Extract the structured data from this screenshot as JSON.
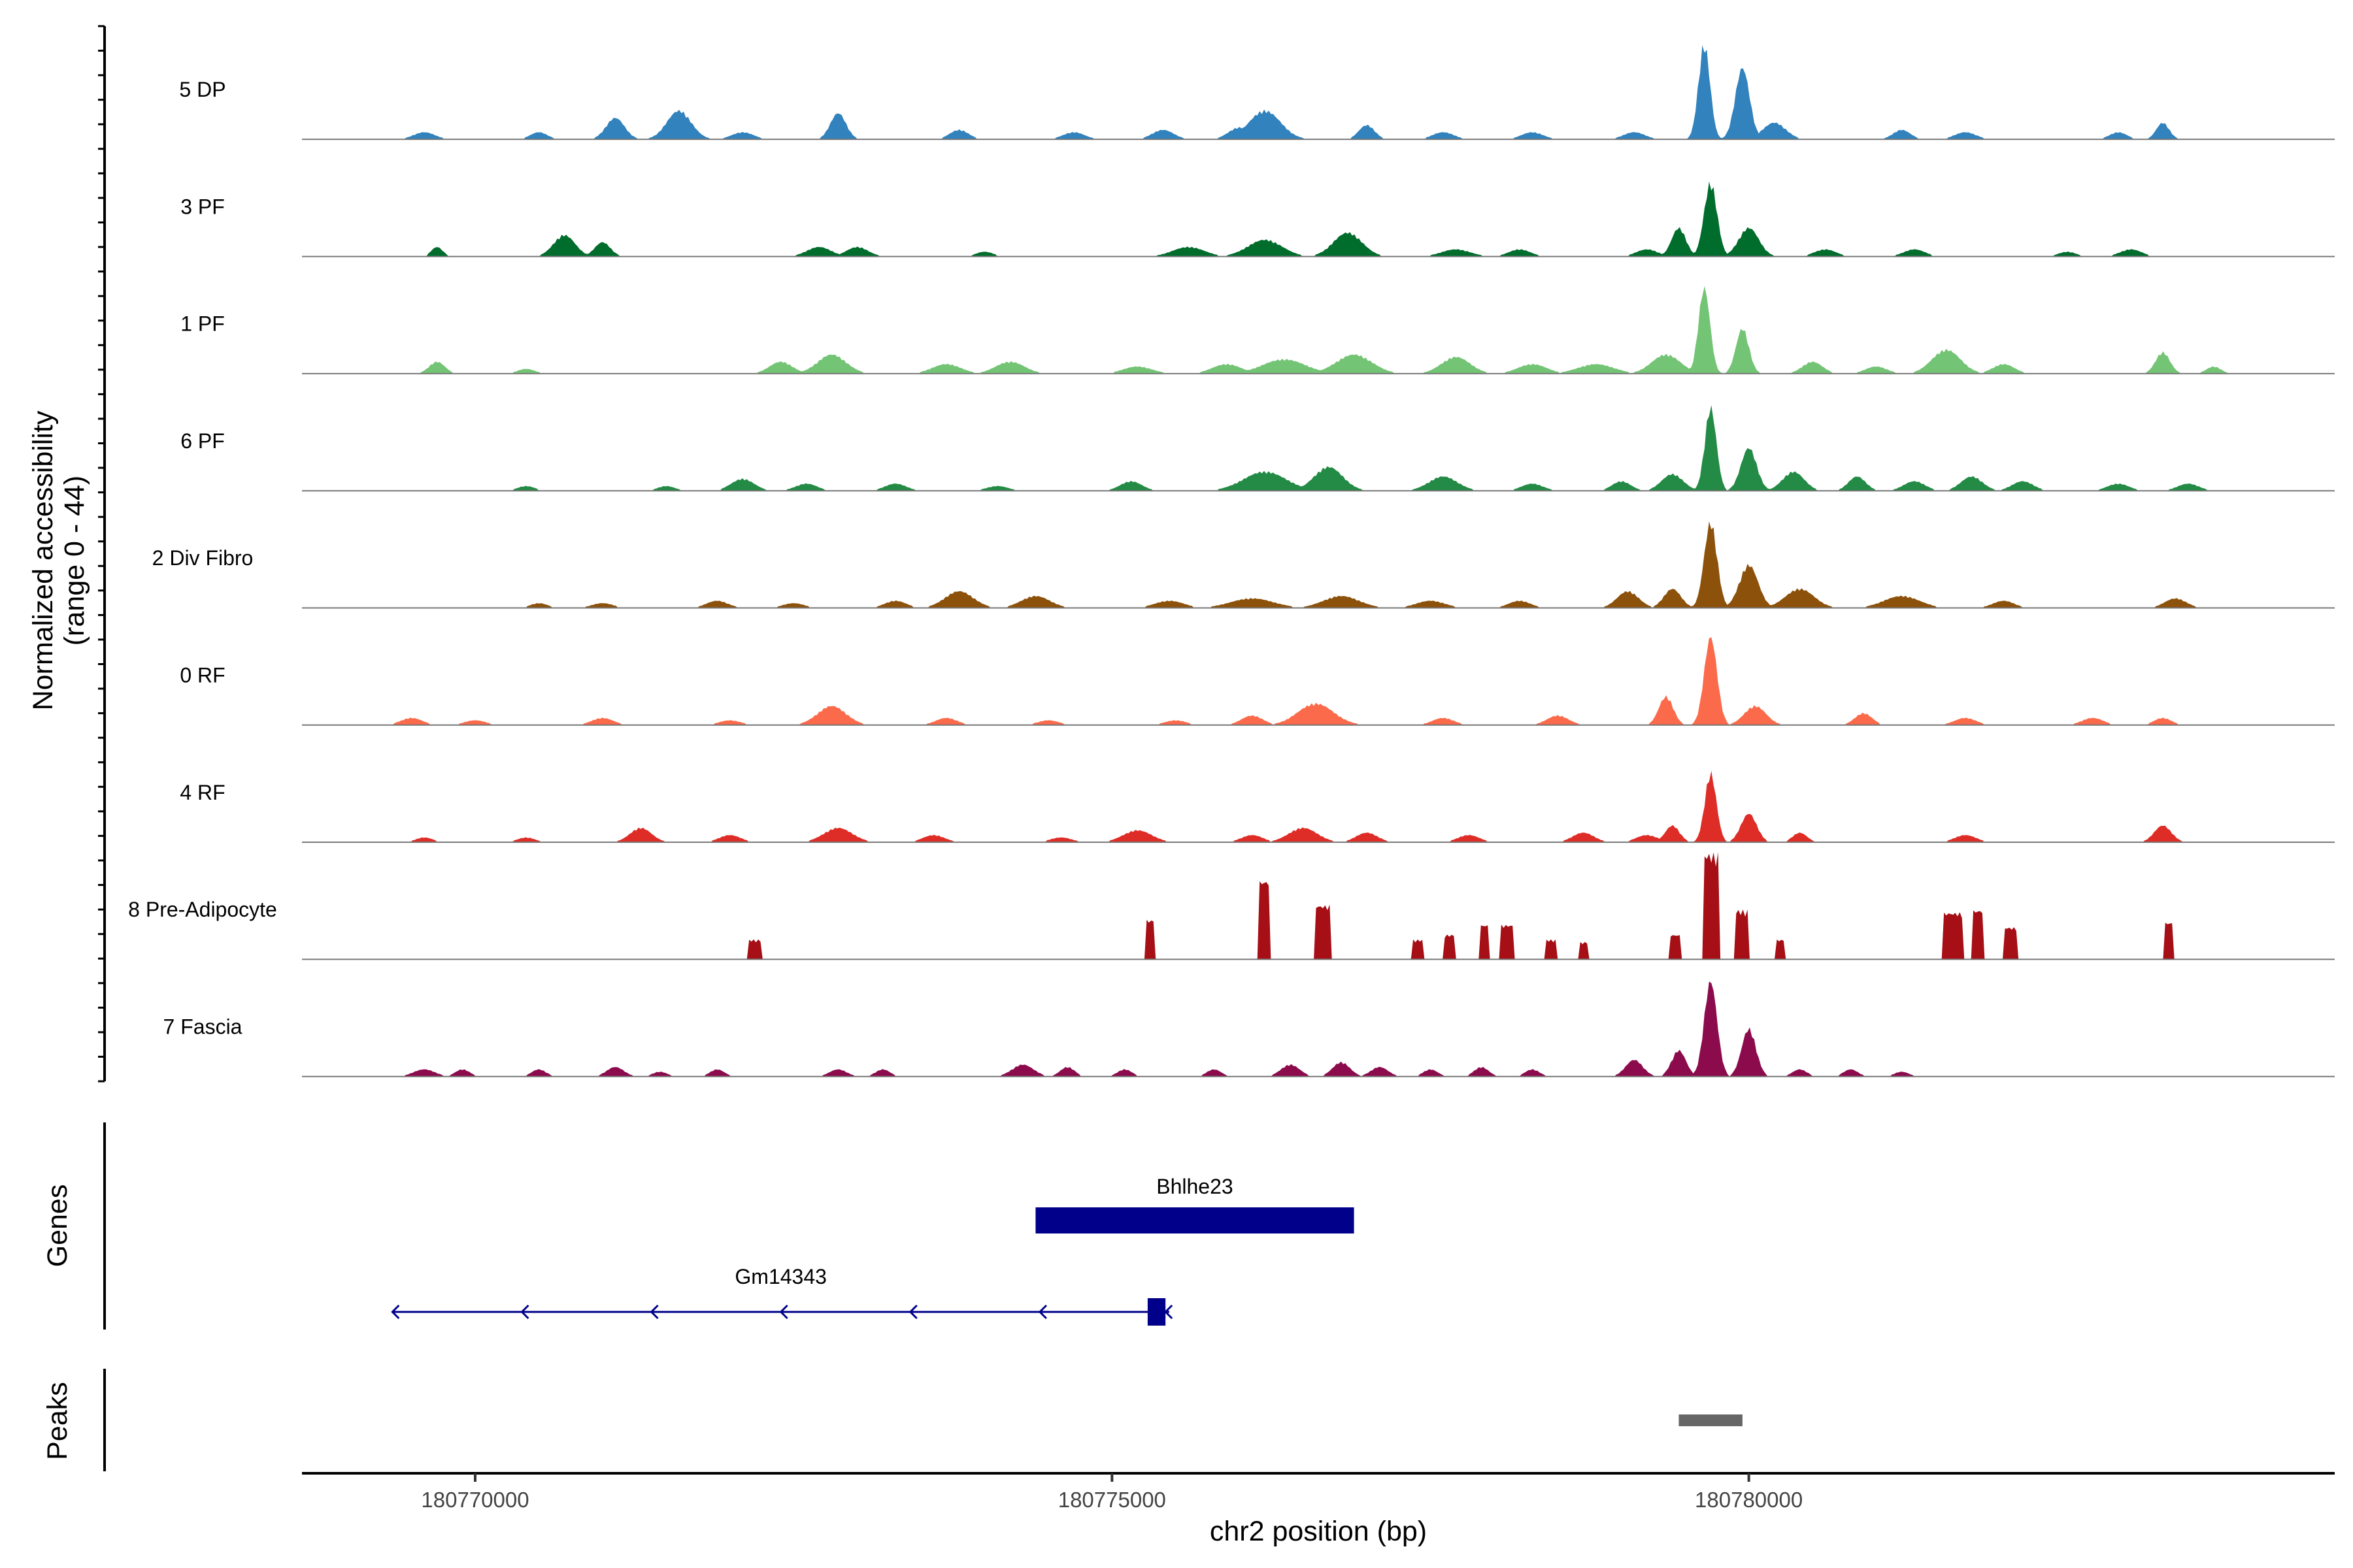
{
  "chart_data": {
    "type": "area",
    "title": "",
    "ylabel": "Normalized accessibility\n(range 0 - 44)",
    "xlabel": "chr2 position (bp)",
    "xlim": [
      180768640,
      180784600
    ],
    "ylim": [
      0,
      44
    ],
    "x_ticks": [
      180770000,
      180775000,
      180780000
    ],
    "x_tick_labels": [
      "180770000",
      "180775000",
      "180780000"
    ],
    "series": [
      {
        "name": "5 DP",
        "color": "#3182bd",
        "peaks": [
          [
            180769600,
            3,
            150
          ],
          [
            180770500,
            3,
            120
          ],
          [
            180771100,
            9,
            130
          ],
          [
            180771600,
            12,
            170
          ],
          [
            180772100,
            3,
            150
          ],
          [
            180772850,
            11,
            110
          ],
          [
            180773800,
            4,
            130
          ],
          [
            180774700,
            3,
            150
          ],
          [
            180775400,
            4,
            150
          ],
          [
            180776000,
            5,
            150
          ],
          [
            180776200,
            12,
            220
          ],
          [
            180777000,
            6,
            110
          ],
          [
            180777600,
            3,
            150
          ],
          [
            180778300,
            3,
            150
          ],
          [
            180779100,
            3,
            150
          ],
          [
            180779650,
            40,
            80
          ],
          [
            180779950,
            30,
            100
          ],
          [
            180780200,
            7,
            160
          ],
          [
            180781200,
            4,
            120
          ],
          [
            180781700,
            3,
            150
          ],
          [
            180782900,
            3,
            120
          ],
          [
            180783250,
            7,
            90
          ]
        ]
      },
      {
        "name": "3 PF",
        "color": "#006d2c",
        "peaks": [
          [
            180769700,
            4,
            80
          ],
          [
            180770700,
            9,
            150
          ],
          [
            180771000,
            6,
            110
          ],
          [
            180772700,
            4,
            170
          ],
          [
            180773000,
            4,
            150
          ],
          [
            180774000,
            2,
            120
          ],
          [
            180775600,
            4,
            220
          ],
          [
            180776200,
            7,
            240
          ],
          [
            180776850,
            10,
            200
          ],
          [
            180777700,
            3,
            200
          ],
          [
            180778200,
            3,
            150
          ],
          [
            180779200,
            3,
            150
          ],
          [
            180779450,
            12,
            100
          ],
          [
            180779700,
            31,
            90
          ],
          [
            180780000,
            12,
            140
          ],
          [
            180780600,
            3,
            150
          ],
          [
            180781300,
            3,
            150
          ],
          [
            180782500,
            2,
            120
          ],
          [
            180783000,
            3,
            150
          ]
        ]
      },
      {
        "name": "1 PF",
        "color": "#74c476",
        "peaks": [
          [
            180769700,
            5,
            110
          ],
          [
            180770400,
            2,
            120
          ],
          [
            180772400,
            5,
            160
          ],
          [
            180772800,
            8,
            200
          ],
          [
            180773700,
            4,
            200
          ],
          [
            180774200,
            5,
            200
          ],
          [
            180775200,
            3,
            200
          ],
          [
            180775900,
            4,
            200
          ],
          [
            180776350,
            6,
            300
          ],
          [
            180776900,
            8,
            250
          ],
          [
            180777700,
            7,
            200
          ],
          [
            180778300,
            4,
            200
          ],
          [
            180778800,
            4,
            250
          ],
          [
            180779350,
            8,
            200
          ],
          [
            180779650,
            36,
            80
          ],
          [
            180779950,
            19,
            90
          ],
          [
            180780500,
            5,
            140
          ],
          [
            180781000,
            3,
            150
          ],
          [
            180781550,
            10,
            200
          ],
          [
            180782000,
            4,
            150
          ],
          [
            180783250,
            9,
            100
          ],
          [
            180783650,
            3,
            100
          ]
        ]
      },
      {
        "name": "6 PF",
        "color": "#238b45",
        "peaks": [
          [
            180770400,
            2,
            120
          ],
          [
            180771500,
            2,
            120
          ],
          [
            180772100,
            5,
            160
          ],
          [
            180772600,
            3,
            150
          ],
          [
            180773300,
            3,
            150
          ],
          [
            180774100,
            2,
            150
          ],
          [
            180775150,
            4,
            150
          ],
          [
            180776200,
            8,
            300
          ],
          [
            180776700,
            10,
            200
          ],
          [
            180777600,
            6,
            200
          ],
          [
            180778300,
            3,
            150
          ],
          [
            180779000,
            4,
            130
          ],
          [
            180779400,
            7,
            150
          ],
          [
            180779700,
            35,
            80
          ],
          [
            180780000,
            18,
            110
          ],
          [
            180780350,
            8,
            150
          ],
          [
            180780850,
            6,
            120
          ],
          [
            180781300,
            4,
            150
          ],
          [
            180781750,
            6,
            150
          ],
          [
            180782150,
            4,
            150
          ],
          [
            180782900,
            3,
            150
          ],
          [
            180783450,
            3,
            150
          ]
        ]
      },
      {
        "name": "2 Div Fibro",
        "color": "#8c510a",
        "peaks": [
          [
            180770500,
            2,
            120
          ],
          [
            180771000,
            2,
            150
          ],
          [
            180771900,
            3,
            150
          ],
          [
            180772500,
            2,
            150
          ],
          [
            180773300,
            3,
            150
          ],
          [
            180773800,
            7,
            200
          ],
          [
            180774400,
            5,
            200
          ],
          [
            180775450,
            3,
            200
          ],
          [
            180776100,
            4,
            300
          ],
          [
            180776800,
            5,
            250
          ],
          [
            180777500,
            3,
            200
          ],
          [
            180778200,
            3,
            150
          ],
          [
            180779050,
            7,
            150
          ],
          [
            180779400,
            8,
            120
          ],
          [
            180779700,
            36,
            90
          ],
          [
            180780000,
            18,
            130
          ],
          [
            180780400,
            8,
            200
          ],
          [
            180781200,
            5,
            250
          ],
          [
            180782000,
            3,
            150
          ],
          [
            180783350,
            4,
            150
          ]
        ]
      },
      {
        "name": "0 RF",
        "color": "#fb6a4a",
        "peaks": [
          [
            180769500,
            3,
            150
          ],
          [
            180770000,
            2,
            150
          ],
          [
            180771000,
            3,
            150
          ],
          [
            180772000,
            2,
            150
          ],
          [
            180772800,
            8,
            200
          ],
          [
            180773700,
            3,
            150
          ],
          [
            180774500,
            2,
            150
          ],
          [
            180775500,
            2,
            150
          ],
          [
            180776100,
            4,
            150
          ],
          [
            180776600,
            9,
            250
          ],
          [
            180777600,
            3,
            150
          ],
          [
            180778500,
            4,
            150
          ],
          [
            180779350,
            12,
            100
          ],
          [
            180779700,
            37,
            90
          ],
          [
            180780050,
            8,
            150
          ],
          [
            180780900,
            5,
            120
          ],
          [
            180781700,
            3,
            150
          ],
          [
            180782700,
            3,
            150
          ],
          [
            180783250,
            3,
            120
          ]
        ]
      },
      {
        "name": "4 RF",
        "color": "#de2d26",
        "peaks": [
          [
            180769600,
            2,
            120
          ],
          [
            180770400,
            2,
            120
          ],
          [
            180771300,
            6,
            150
          ],
          [
            180772000,
            3,
            150
          ],
          [
            180772850,
            6,
            200
          ],
          [
            180773600,
            3,
            150
          ],
          [
            180774600,
            2,
            150
          ],
          [
            180775200,
            5,
            200
          ],
          [
            180776100,
            3,
            150
          ],
          [
            180776500,
            6,
            200
          ],
          [
            180777000,
            4,
            150
          ],
          [
            180777800,
            3,
            150
          ],
          [
            180778700,
            4,
            150
          ],
          [
            180779200,
            3,
            150
          ],
          [
            180779400,
            7,
            100
          ],
          [
            180779700,
            29,
            80
          ],
          [
            180780000,
            12,
            110
          ],
          [
            180780400,
            4,
            100
          ],
          [
            180781700,
            3,
            150
          ],
          [
            180783250,
            7,
            120
          ]
        ]
      },
      {
        "name": "8 Pre-Adipocyte",
        "color": "#a50f15",
        "peaks": [
          [
            180772200,
            8,
            110,
            "step"
          ],
          [
            180775300,
            16,
            80,
            "step"
          ],
          [
            180776200,
            32,
            90,
            "step"
          ],
          [
            180776650,
            22,
            120,
            "step"
          ],
          [
            180777400,
            8,
            80,
            "step"
          ],
          [
            180777650,
            10,
            100,
            "step"
          ],
          [
            180777920,
            14,
            70,
            "step"
          ],
          [
            180778100,
            14,
            100,
            "step"
          ],
          [
            180778450,
            8,
            80,
            "step"
          ],
          [
            180778700,
            7,
            80,
            "step"
          ],
          [
            180779430,
            10,
            90,
            "step"
          ],
          [
            180779700,
            43,
            120,
            "step"
          ],
          [
            180779950,
            20,
            100,
            "step"
          ],
          [
            180780250,
            8,
            70,
            "step"
          ],
          [
            180781600,
            19,
            150,
            "step"
          ],
          [
            180781800,
            20,
            100,
            "step"
          ],
          [
            180782050,
            13,
            100,
            "step"
          ],
          [
            180783300,
            15,
            80,
            "step"
          ]
        ]
      },
      {
        "name": "7 Fascia",
        "color": "#8c0b4d",
        "peaks": [
          [
            180769600,
            3,
            150
          ],
          [
            180769900,
            3,
            100
          ],
          [
            180770500,
            3,
            100
          ],
          [
            180771100,
            4,
            120
          ],
          [
            180771450,
            2,
            100
          ],
          [
            180771900,
            3,
            100
          ],
          [
            180772850,
            3,
            120
          ],
          [
            180773200,
            3,
            100
          ],
          [
            180774300,
            5,
            150
          ],
          [
            180774650,
            4,
            100
          ],
          [
            180775100,
            3,
            100
          ],
          [
            180775800,
            3,
            100
          ],
          [
            180776400,
            5,
            130
          ],
          [
            180776800,
            6,
            120
          ],
          [
            180777100,
            4,
            120
          ],
          [
            180777500,
            3,
            100
          ],
          [
            180777900,
            4,
            100
          ],
          [
            180778300,
            3,
            100
          ],
          [
            180779100,
            7,
            120
          ],
          [
            180779450,
            11,
            100
          ],
          [
            180779700,
            40,
            90
          ],
          [
            180780000,
            20,
            100
          ],
          [
            180780400,
            3,
            100
          ],
          [
            180780800,
            3,
            100
          ],
          [
            180781200,
            2,
            100
          ]
        ]
      }
    ],
    "genes": [
      {
        "name": "Bhlhe23",
        "start": 180774400,
        "end": 180776900,
        "strand": "+",
        "type": "exon"
      },
      {
        "name": "Gm14343",
        "start": 180769350,
        "end": 180775450,
        "exon_start": 180775280,
        "exon_end": 180775420,
        "strand": "-"
      }
    ],
    "peaks_track": [
      {
        "start": 180779450,
        "end": 180779950
      }
    ],
    "panel_titles": [
      "Genes",
      "Peaks"
    ]
  }
}
